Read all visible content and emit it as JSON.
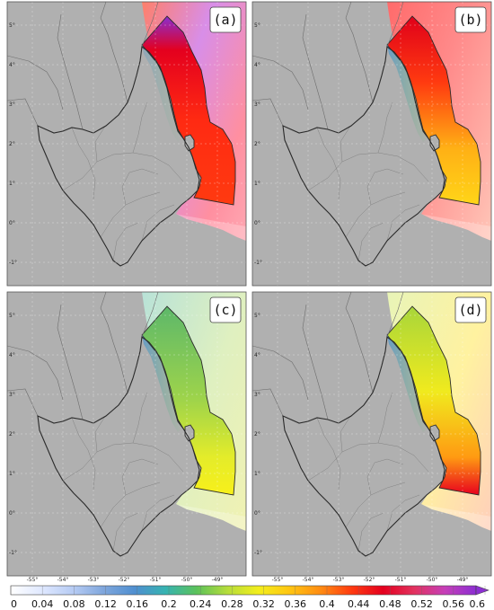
{
  "panels": [
    {
      "label": "(a)",
      "scheme": "high-a"
    },
    {
      "label": "(b)",
      "scheme": "high-b"
    },
    {
      "label": "(c)",
      "scheme": "low-c"
    },
    {
      "label": "(d)",
      "scheme": "mid-d"
    }
  ],
  "axes": {
    "lat_ticks": [
      "5°",
      "4°",
      "3°",
      "2°",
      "1°",
      "0°",
      "-1°"
    ],
    "lon_ticks": [
      "-55°",
      "-54°",
      "-53°",
      "-52°",
      "-51°",
      "-50°",
      "-49°"
    ]
  },
  "colorbar": {
    "ticks": [
      "0",
      "0.04",
      "0.08",
      "0.12",
      "0.16",
      "0.2",
      "0.24",
      "0.28",
      "0.32",
      "0.36",
      "0.4",
      "0.44",
      "0.48",
      "0.52",
      "0.56",
      "0.6"
    ],
    "colors": [
      "#ffffff",
      "#dfe8ff",
      "#b7ccf4",
      "#7fa6dc",
      "#4f8fd0",
      "#36b3b1",
      "#5cc25a",
      "#b7dd3a",
      "#f3ee1c",
      "#ffc512",
      "#ff8b12",
      "#ff3a10",
      "#e4001e",
      "#e2325f",
      "#c53fb8",
      "#8c2ed2"
    ],
    "extend": "max"
  },
  "colors": {
    "land": "#b0b0b0",
    "border": "#2a2a2a",
    "panel_frame": "#555555"
  }
}
